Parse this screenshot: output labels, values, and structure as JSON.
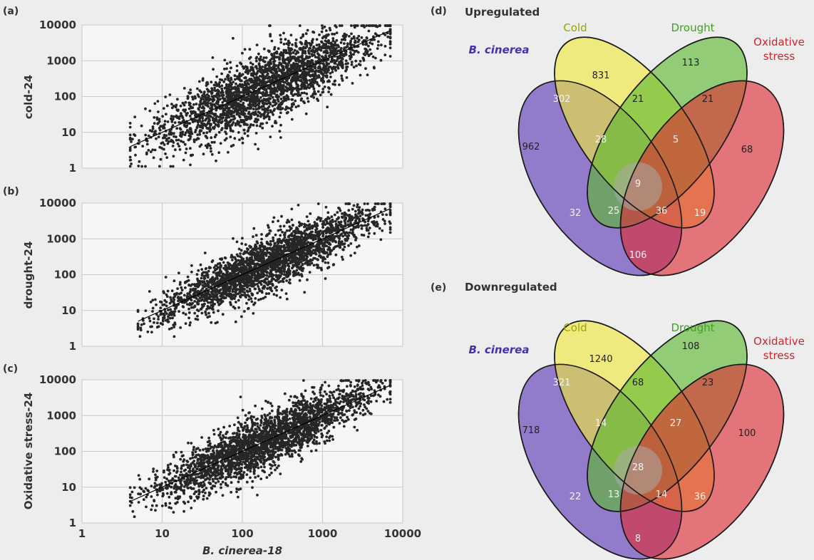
{
  "chart_data": [
    {
      "panel": "(a)",
      "type": "scatter",
      "title": "",
      "xlabel": "",
      "ylabel": "cold-24",
      "xscale": "log",
      "yscale": "log",
      "xlim": [
        1,
        10000
      ],
      "ylim": [
        1,
        10000
      ],
      "yticks": [
        "1",
        "10",
        "100",
        "1000",
        "10000"
      ],
      "xticks": [],
      "grid": true,
      "points": {
        "x_from": 4,
        "x_to": 7000,
        "trend_slope": 1.0,
        "spread_decades": 0.42,
        "count": 2600,
        "seed": 11
      }
    },
    {
      "panel": "(b)",
      "type": "scatter",
      "title": "",
      "xlabel": "",
      "ylabel": "drought-24",
      "xscale": "log",
      "yscale": "log",
      "xlim": [
        1,
        10000
      ],
      "ylim": [
        1,
        10000
      ],
      "yticks": [
        "1",
        "10",
        "100",
        "1000",
        "10000"
      ],
      "xticks": [],
      "grid": true,
      "points": {
        "x_from": 5,
        "x_to": 7000,
        "trend_slope": 1.0,
        "spread_decades": 0.33,
        "count": 2600,
        "seed": 23
      }
    },
    {
      "panel": "(c)",
      "type": "scatter",
      "title": "",
      "xlabel": "B. cinerea-18",
      "ylabel": "Oxidative stress-24",
      "xscale": "log",
      "yscale": "log",
      "xlim": [
        1,
        10000
      ],
      "ylim": [
        1,
        10000
      ],
      "yticks": [
        "1",
        "10",
        "100",
        "1000",
        "10000"
      ],
      "xticks": [
        "1",
        "10",
        "100",
        "1000",
        "10000"
      ],
      "grid": true,
      "points": {
        "x_from": 4,
        "x_to": 7000,
        "trend_slope": 1.0,
        "spread_decades": 0.33,
        "count": 2600,
        "seed": 37
      }
    },
    {
      "panel": "(d)",
      "type": "venn",
      "title": "Upregulated",
      "sets": [
        {
          "name": "B. cinerea",
          "color": "#5a35b5"
        },
        {
          "name": "Cold",
          "color": "#f0e83a"
        },
        {
          "name": "Drought",
          "color": "#5cb82e"
        },
        {
          "name": "Oxidative stress",
          "color": "#dd2a33"
        }
      ],
      "regions": {
        "B": "962",
        "C": "831",
        "D": "113",
        "O": "68",
        "BC": "302",
        "CD": "21",
        "DO": "21",
        "BO": "106",
        "BCD": "28",
        "CDO": "5",
        "BD": "32",
        "CO": "19",
        "BCDO": "9",
        "BDO": "25",
        "BCO": "36"
      }
    },
    {
      "panel": "(e)",
      "type": "venn",
      "title": "Downregulated",
      "sets": [
        {
          "name": "B. cinerea",
          "color": "#5a35b5"
        },
        {
          "name": "Cold",
          "color": "#f0e83a"
        },
        {
          "name": "Drought",
          "color": "#5cb82e"
        },
        {
          "name": "Oxidative stress",
          "color": "#dd2a33"
        }
      ],
      "regions": {
        "B": "718",
        "C": "1240",
        "D": "108",
        "O": "100",
        "BC": "321",
        "CD": "68",
        "DO": "23",
        "BO": "8",
        "BCD": "14",
        "CDO": "27",
        "BD": "22",
        "CO": "36",
        "BCDO": "28",
        "BDO": "13",
        "BCO": "14"
      }
    }
  ],
  "colors": {
    "plot_bg": "#f6f6f6",
    "grid": "#c9c9c9",
    "points": "#262626",
    "label_bcinerea": "#4a2fb0",
    "label_cold": "#9aa400",
    "label_drought": "#3fa21e",
    "label_oxidative": "#cf2430"
  }
}
